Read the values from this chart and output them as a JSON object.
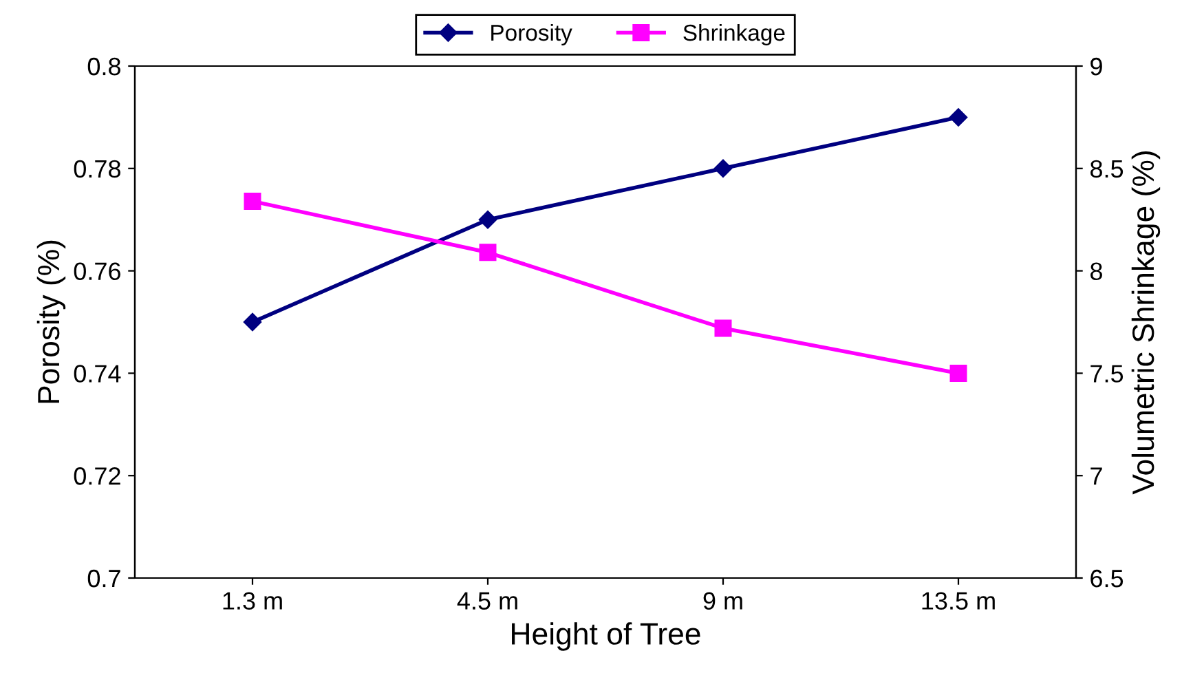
{
  "chart_data": {
    "type": "line",
    "xlabel": "Height of Tree",
    "ylabel": "Porosity (%)",
    "y2label": "Volumetric Shrinkage (%)",
    "categories": [
      "1.3 m",
      "4.5 m",
      "9 m",
      "13.5 m"
    ],
    "series": [
      {
        "name": "Porosity",
        "color": "#000080",
        "marker": "diamond",
        "values": [
          0.75,
          0.77,
          0.78,
          0.79
        ]
      },
      {
        "name": "Shrinkage",
        "color": "#ff00ff",
        "marker": "square",
        "axis": "y2",
        "values": [
          8.34,
          8.09,
          7.72,
          7.5
        ]
      }
    ],
    "ylim": [
      0.7,
      0.8
    ],
    "yticks": [
      {
        "value": 0.7,
        "label": "0.7"
      },
      0.72,
      0.74,
      0.76,
      0.78,
      {
        "value": 0.8,
        "label": "0.8"
      }
    ],
    "y2lim": [
      6.5,
      9
    ],
    "y2ticks": [
      6.5,
      {
        "value": 7,
        "label": "7"
      },
      7.5,
      {
        "value": 8,
        "label": "8"
      },
      8.5,
      {
        "value": 9,
        "label": "9"
      }
    ],
    "grid": false,
    "legend": "top",
    "line_style": "solid"
  }
}
